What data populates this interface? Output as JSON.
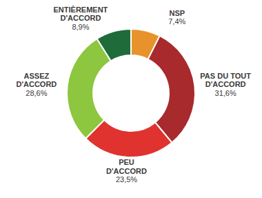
{
  "chart_data": {
    "type": "donut",
    "categories": [
      "NSP",
      "PAS DU TOUT D'ACCORD",
      "PEU D'ACCORD",
      "ASSEZ D'ACCORD",
      "ENTIÈREMENT D'ACCORD"
    ],
    "values": [
      7.4,
      31.6,
      23.5,
      28.6,
      8.9
    ],
    "value_labels": [
      "7,4%",
      "31,6%",
      "23,5%",
      "28,6%",
      "8,9%"
    ],
    "colors": [
      "#e8922b",
      "#a82a2c",
      "#e0332f",
      "#8dc63f",
      "#1f6b3a"
    ],
    "data_labels": true
  }
}
